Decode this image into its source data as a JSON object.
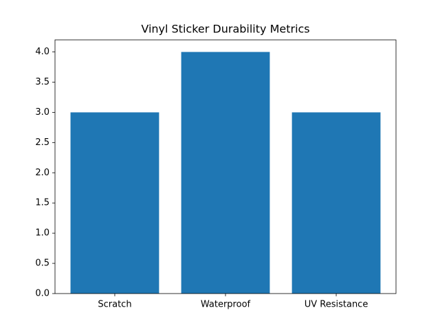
{
  "chart_data": {
    "type": "bar",
    "title": "Vinyl Sticker Durability Metrics",
    "categories": [
      "Scratch",
      "Waterproof",
      "UV Resistance"
    ],
    "values": [
      3,
      4,
      3
    ],
    "color": "#1f77b4",
    "ylim": [
      0,
      4.2
    ],
    "yticks": [
      {
        "value": 0,
        "label": "0.0"
      },
      0.5,
      {
        "value": 1,
        "label": "1.0"
      },
      1.5,
      {
        "value": 2,
        "label": "2.0"
      },
      2.5,
      {
        "value": 3,
        "label": "3.0"
      },
      3.5,
      {
        "value": 4,
        "label": "4.0"
      }
    ],
    "grid": false
  }
}
